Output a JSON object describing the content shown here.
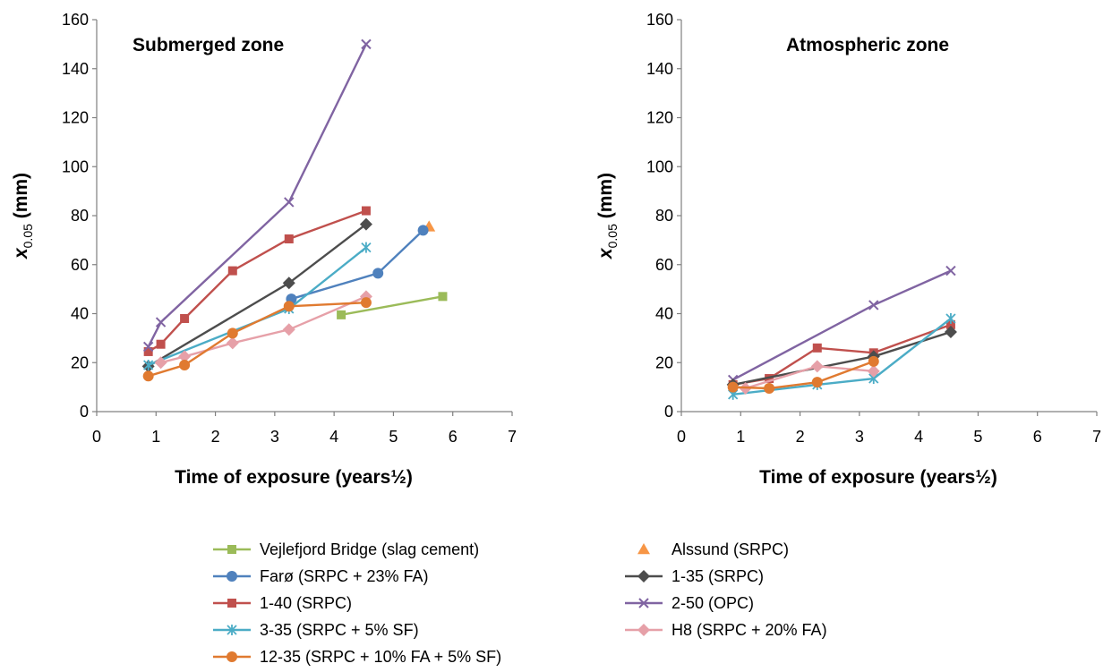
{
  "legend": [
    {
      "series": "vejlefjord",
      "label": "Vejlefjord Bridge (slag cement)"
    },
    {
      "series": "alssund",
      "label": "Alssund (SRPC)"
    },
    {
      "series": "faro",
      "label": "Farø (SRPC + 23% FA)"
    },
    {
      "series": "s135",
      "label": "1-35 (SRPC)"
    },
    {
      "series": "s140",
      "label": "1-40 (SRPC)"
    },
    {
      "series": "s250",
      "label": "2-50 (OPC)"
    },
    {
      "series": "s335",
      "label": "3-35 (SRPC + 5% SF)"
    },
    {
      "series": "h8",
      "label": "H8 (SRPC + 20% FA)"
    },
    {
      "series": "s1235",
      "label": "12-35 (SRPC + 10% FA + 5% SF)"
    }
  ],
  "series_styles": {
    "vejlefjord": {
      "color": "#9BBB59",
      "marker": "square",
      "line": true
    },
    "alssund": {
      "color": "#F79646",
      "marker": "triangle",
      "line": false
    },
    "faro": {
      "color": "#4F81BD",
      "marker": "circle",
      "line": true
    },
    "s135": {
      "color": "#4D4D4D",
      "marker": "diamond",
      "line": true
    },
    "s140": {
      "color": "#C0504D",
      "marker": "square",
      "line": true
    },
    "s250": {
      "color": "#8064A2",
      "marker": "x",
      "line": true
    },
    "s335": {
      "color": "#4BACC6",
      "marker": "star",
      "line": true
    },
    "h8": {
      "color": "#E6A0A8",
      "marker": "diamond",
      "line": true
    },
    "s1235": {
      "color": "#E07A30",
      "marker": "circle",
      "line": true
    }
  },
  "chart_data": [
    {
      "type": "line",
      "title": "Submerged zone",
      "xlabel": "Time of exposure (years½)",
      "ylabel": {
        "main": "x",
        "sub": "0.05",
        "unit": " (mm)"
      },
      "xlim": [
        0,
        7
      ],
      "ylim": [
        0,
        160
      ],
      "xticks": [
        0,
        1,
        2,
        3,
        4,
        5,
        6,
        7
      ],
      "yticks": [
        0,
        20,
        40,
        60,
        80,
        100,
        120,
        140,
        160
      ],
      "series": [
        {
          "id": "vejlefjord",
          "x": [
            4.12,
            5.83
          ],
          "y": [
            39.5,
            47
          ]
        },
        {
          "id": "alssund",
          "x": [
            5.6
          ],
          "y": [
            75.5
          ]
        },
        {
          "id": "faro",
          "x": [
            3.28,
            4.74,
            5.5
          ],
          "y": [
            46,
            56.5,
            74
          ]
        },
        {
          "id": "s135",
          "x": [
            0.87,
            3.24,
            4.54
          ],
          "y": [
            18.5,
            52.5,
            76.5
          ]
        },
        {
          "id": "s140",
          "x": [
            0.87,
            1.08,
            1.48,
            2.29,
            3.24,
            4.54
          ],
          "y": [
            24.5,
            27.5,
            38,
            57.5,
            70.5,
            82
          ]
        },
        {
          "id": "s250",
          "x": [
            0.87,
            1.08,
            3.24,
            4.54
          ],
          "y": [
            26.5,
            36.5,
            85.5,
            150
          ]
        },
        {
          "id": "s335",
          "x": [
            0.87,
            3.24,
            4.54
          ],
          "y": [
            19,
            42,
            67
          ]
        },
        {
          "id": "h8",
          "x": [
            1.08,
            1.48,
            2.29,
            3.24,
            4.54
          ],
          "y": [
            20,
            22.5,
            28,
            33.5,
            47
          ]
        },
        {
          "id": "s1235",
          "x": [
            0.87,
            1.48,
            2.29,
            3.24,
            4.54
          ],
          "y": [
            14.5,
            19,
            32,
            43,
            44.5
          ]
        }
      ]
    },
    {
      "type": "line",
      "title": "Atmospheric zone",
      "xlabel": "Time of exposure (years½)",
      "ylabel": {
        "main": "x",
        "sub": "0.05",
        "unit": " (mm)"
      },
      "xlim": [
        0,
        7
      ],
      "ylim": [
        0,
        160
      ],
      "xticks": [
        0,
        1,
        2,
        3,
        4,
        5,
        6,
        7
      ],
      "yticks": [
        0,
        20,
        40,
        60,
        80,
        100,
        120,
        140,
        160
      ],
      "series": [
        {
          "id": "s250",
          "x": [
            0.87,
            3.24,
            4.54
          ],
          "y": [
            13,
            43.5,
            57.5
          ]
        },
        {
          "id": "s140",
          "x": [
            0.87,
            1.48,
            2.29,
            3.24,
            4.54
          ],
          "y": [
            11,
            13.5,
            26,
            24,
            35.5
          ]
        },
        {
          "id": "s135",
          "x": [
            0.87,
            3.24,
            4.54
          ],
          "y": [
            11,
            22.5,
            32.5
          ]
        },
        {
          "id": "s335",
          "x": [
            0.87,
            2.29,
            3.24,
            4.54
          ],
          "y": [
            7,
            11,
            13.5,
            38
          ]
        },
        {
          "id": "h8",
          "x": [
            1.08,
            2.29,
            3.24
          ],
          "y": [
            9.5,
            18.5,
            16.5
          ]
        },
        {
          "id": "s1235",
          "x": [
            0.87,
            1.48,
            2.29,
            3.24
          ],
          "y": [
            10,
            9.5,
            12,
            20.5
          ]
        }
      ]
    }
  ]
}
